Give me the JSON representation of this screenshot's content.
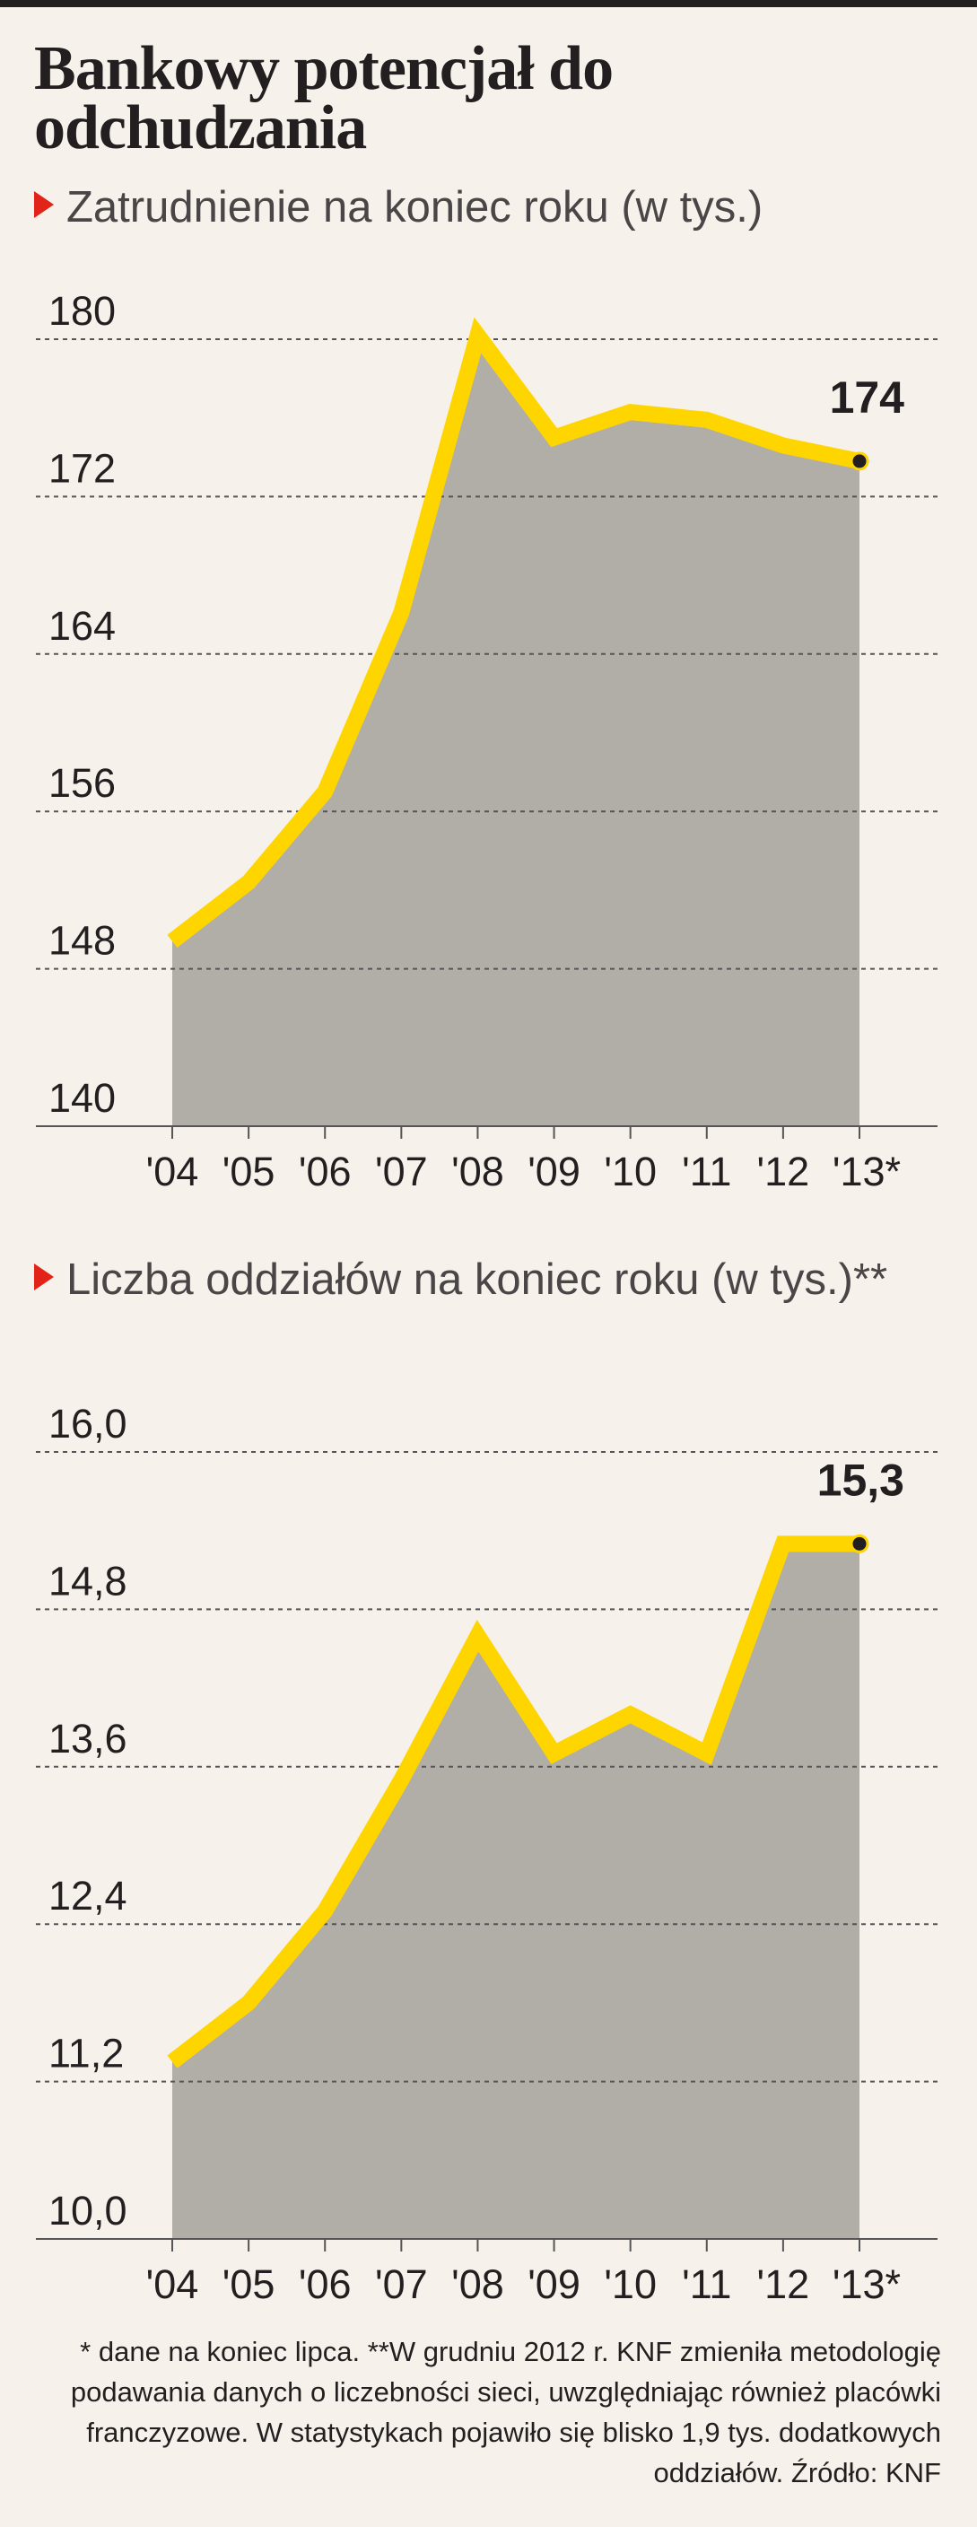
{
  "title": "Bankowy potencjał do odchudzania",
  "colors": {
    "area": "#b1ada7",
    "line": "#ffd500",
    "grid": "#555555",
    "axis": "#555555",
    "accent": "#e2231a"
  },
  "chart_data": [
    {
      "type": "area",
      "title": "Zatrudnienie na koniec roku (w tys.)",
      "categories": [
        "'04",
        "'05",
        "'06",
        "'07",
        "'08",
        "'09",
        "'10",
        "'11",
        "'12",
        "'13*"
      ],
      "values": [
        149.4,
        152.4,
        157.0,
        166.1,
        180.2,
        175.0,
        176.3,
        175.9,
        174.6,
        173.8
      ],
      "yticks": [
        "180",
        "172",
        "164",
        "156",
        "148",
        "140"
      ],
      "ylim": [
        140,
        180
      ],
      "end_label": "174",
      "grid": true
    },
    {
      "type": "area",
      "title": "Liczba oddziałów na koniec roku (w tys.)**",
      "categories": [
        "'04",
        "'05",
        "'06",
        "'07",
        "'08",
        "'09",
        "'10",
        "'11",
        "'12",
        "'13*"
      ],
      "values": [
        11.35,
        11.8,
        12.5,
        13.5,
        14.6,
        13.7,
        14.0,
        13.7,
        15.3,
        15.3
      ],
      "yticks": [
        "16,0",
        "14,8",
        "13,6",
        "12,4",
        "11,2",
        "10,0"
      ],
      "ylim": [
        10.0,
        16.0
      ],
      "end_label": "15,3",
      "grid": true
    }
  ],
  "footnote": "* dane na koniec lipca. **W grudniu 2012 r. KNF zmieniła metodologię podawania danych o liczebności sieci, uwzględniając również placówki franczyzowe. W statystykach pojawiło się blisko 1,9 tys. dodatkowych oddziałów. Źródło: KNF"
}
